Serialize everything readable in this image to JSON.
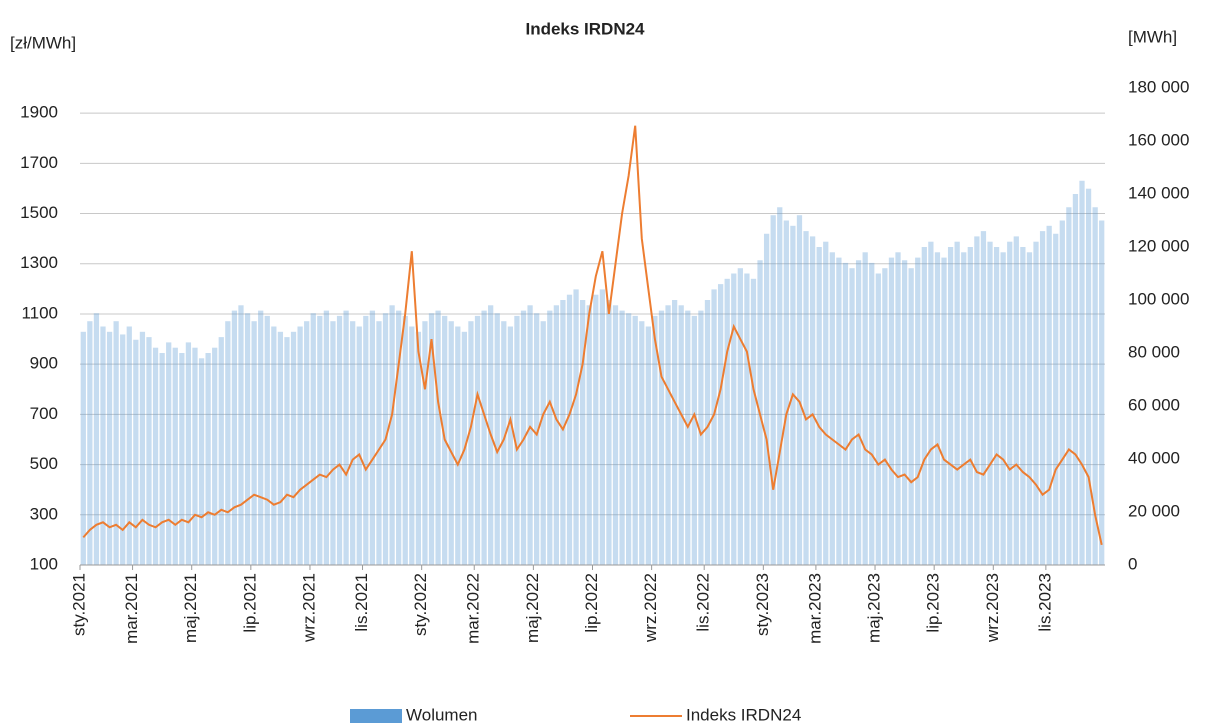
{
  "chart_data": {
    "type": "bar-line",
    "title": "Indeks IRDN24",
    "ylabel": "[zł/MWh]",
    "y2label": "[MWh]",
    "categories": [
      "sty.2021",
      null,
      null,
      null,
      null,
      null,
      null,
      null,
      "mar.2021",
      null,
      null,
      null,
      null,
      null,
      null,
      null,
      null,
      "maj.2021",
      null,
      null,
      null,
      null,
      null,
      null,
      null,
      null,
      "lip.2021",
      null,
      null,
      null,
      null,
      null,
      null,
      null,
      null,
      "wrz.2021",
      null,
      null,
      null,
      null,
      null,
      null,
      null,
      "lis.2021",
      null,
      null,
      null,
      null,
      null,
      null,
      null,
      null,
      "sty.2022",
      null,
      null,
      null,
      null,
      null,
      null,
      null,
      "mar.2022",
      null,
      null,
      null,
      null,
      null,
      null,
      null,
      null,
      "maj.2022",
      null,
      null,
      null,
      null,
      null,
      null,
      null,
      null,
      "lip.2022",
      null,
      null,
      null,
      null,
      null,
      null,
      null,
      null,
      "wrz.2022",
      null,
      null,
      null,
      null,
      null,
      null,
      null,
      "lis.2022",
      null,
      null,
      null,
      null,
      null,
      null,
      null,
      null,
      "sty.2023",
      null,
      null,
      null,
      null,
      null,
      null,
      null,
      "mar.2023",
      null,
      null,
      null,
      null,
      null,
      null,
      null,
      null,
      "maj.2023",
      null,
      null,
      null,
      null,
      null,
      null,
      null,
      null,
      "lip.2023",
      null,
      null,
      null,
      null,
      null,
      null,
      null,
      null,
      "wrz.2023",
      null,
      null,
      null,
      null,
      null,
      null,
      null,
      "lis.2023",
      null,
      null,
      null,
      null,
      null,
      null,
      null,
      null
    ],
    "series": [
      {
        "name": "Wolumen",
        "color": "#5b9bd5",
        "axis": "y2",
        "values": [
          88000,
          92000,
          95000,
          90000,
          88000,
          92000,
          87000,
          90000,
          85000,
          88000,
          86000,
          82000,
          80000,
          84000,
          82000,
          80000,
          84000,
          82000,
          78000,
          80000,
          82000,
          86000,
          92000,
          96000,
          98000,
          95000,
          92000,
          96000,
          94000,
          90000,
          88000,
          86000,
          88000,
          90000,
          92000,
          95000,
          94000,
          96000,
          92000,
          94000,
          96000,
          92000,
          90000,
          94000,
          96000,
          92000,
          95000,
          98000,
          96000,
          94000,
          90000,
          88000,
          92000,
          95000,
          96000,
          94000,
          92000,
          90000,
          88000,
          92000,
          94000,
          96000,
          98000,
          95000,
          92000,
          90000,
          94000,
          96000,
          98000,
          95000,
          92000,
          96000,
          98000,
          100000,
          102000,
          104000,
          100000,
          98000,
          102000,
          104000,
          100000,
          98000,
          96000,
          95000,
          94000,
          92000,
          90000,
          94000,
          96000,
          98000,
          100000,
          98000,
          96000,
          94000,
          96000,
          100000,
          104000,
          106000,
          108000,
          110000,
          112000,
          110000,
          108000,
          115000,
          125000,
          132000,
          135000,
          130000,
          128000,
          132000,
          126000,
          124000,
          120000,
          122000,
          118000,
          116000,
          114000,
          112000,
          115000,
          118000,
          114000,
          110000,
          112000,
          116000,
          118000,
          115000,
          112000,
          116000,
          120000,
          122000,
          118000,
          116000,
          120000,
          122000,
          118000,
          120000,
          124000,
          126000,
          122000,
          120000,
          118000,
          122000,
          124000,
          120000,
          118000,
          122000,
          126000,
          128000,
          125000,
          130000,
          135000,
          140000,
          145000,
          142000,
          135000,
          130000
        ]
      },
      {
        "name": "Indeks IRDN24",
        "color": "#ed7d31",
        "values": [
          210,
          240,
          260,
          270,
          250,
          260,
          240,
          270,
          250,
          280,
          260,
          250,
          270,
          280,
          260,
          280,
          270,
          300,
          290,
          310,
          300,
          320,
          310,
          330,
          340,
          360,
          380,
          370,
          360,
          340,
          350,
          380,
          370,
          400,
          420,
          440,
          460,
          450,
          480,
          500,
          460,
          520,
          540,
          480,
          520,
          560,
          600,
          700,
          900,
          1100,
          1350,
          950,
          800,
          1000,
          750,
          600,
          550,
          500,
          560,
          650,
          780,
          700,
          620,
          550,
          600,
          680,
          560,
          600,
          650,
          620,
          700,
          750,
          680,
          640,
          700,
          780,
          900,
          1100,
          1250,
          1350,
          1100,
          1300,
          1500,
          1650,
          1850,
          1400,
          1200,
          1000,
          850,
          800,
          750,
          700,
          650,
          700,
          620,
          650,
          700,
          800,
          950,
          1050,
          1000,
          950,
          800,
          700,
          600,
          400,
          550,
          700,
          780,
          750,
          680,
          700,
          650,
          620,
          600,
          580,
          560,
          600,
          620,
          560,
          540,
          500,
          520,
          480,
          450,
          460,
          430,
          450,
          520,
          560,
          580,
          520,
          500,
          480,
          500,
          520,
          470,
          460,
          500,
          540,
          520,
          480,
          500,
          470,
          450,
          420,
          380,
          400,
          480,
          520,
          560,
          540,
          500,
          450,
          300,
          180
        ]
      }
    ],
    "ylim": [
      100,
      2000
    ],
    "yticks": [
      100,
      300,
      500,
      700,
      900,
      1100,
      1300,
      1500,
      1700,
      1900
    ],
    "y2lim": [
      0,
      180000
    ],
    "y2ticks": [
      0,
      {
        "value": 20000,
        "label": "20 000"
      },
      {
        "value": 40000,
        "label": "40 000"
      },
      {
        "value": 60000,
        "label": "60 000"
      },
      {
        "value": 80000,
        "label": "80 000"
      },
      {
        "value": 100000,
        "label": "100 000"
      },
      {
        "value": 120000,
        "label": "120 000"
      },
      {
        "value": 140000,
        "label": "140 000"
      },
      {
        "value": 160000,
        "label": "160 000"
      },
      {
        "value": 180000,
        "label": "180 000"
      }
    ],
    "grid": true
  }
}
